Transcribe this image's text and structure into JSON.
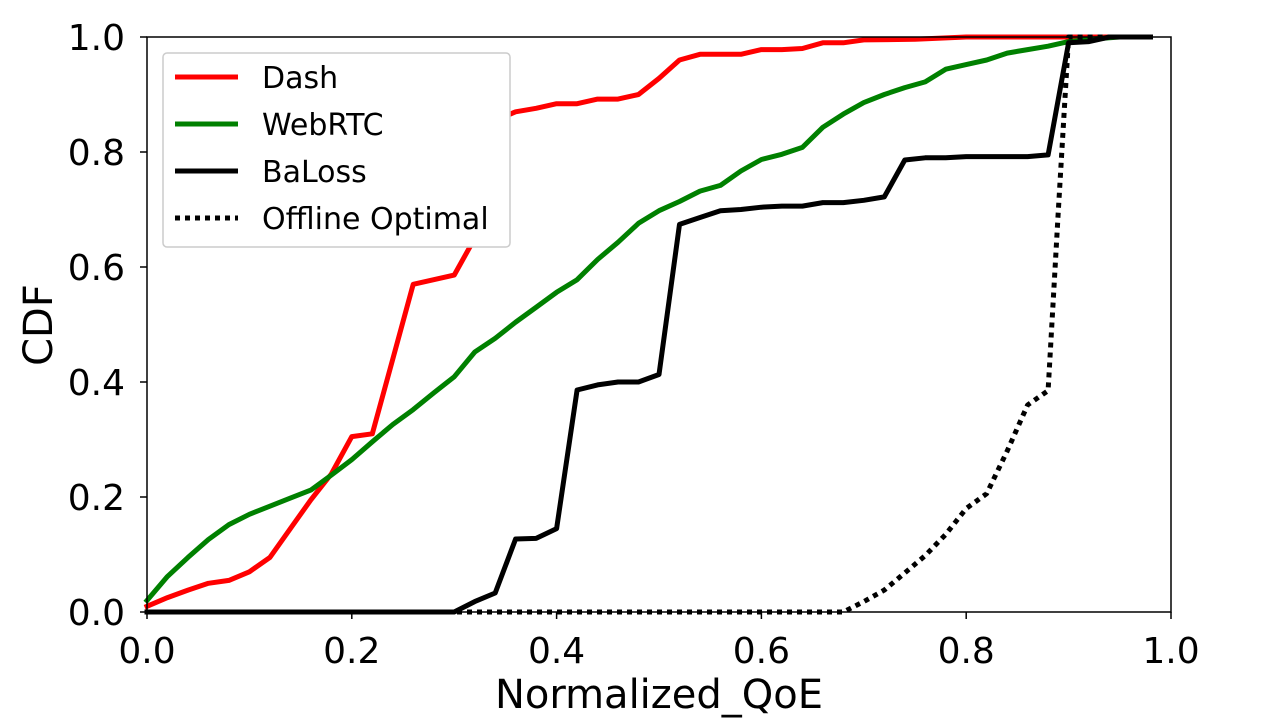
{
  "chart_data": {
    "type": "line",
    "xlabel": "Normalized_QoE",
    "ylabel": "CDF",
    "xlim": [
      0.0,
      1.0
    ],
    "ylim": [
      0.0,
      1.0
    ],
    "xticks": [
      "0.0",
      "0.2",
      "0.4",
      "0.6",
      "0.8",
      "1.0"
    ],
    "yticks": [
      "0.0",
      "0.2",
      "0.4",
      "0.6",
      "0.8",
      "1.0"
    ],
    "grid": false,
    "legend_position": "top-left",
    "series": [
      {
        "name": "Dash",
        "color": "#ff0000",
        "style": "solid",
        "points": [
          [
            0.0,
            0.01
          ],
          [
            0.02,
            0.025
          ],
          [
            0.04,
            0.038
          ],
          [
            0.06,
            0.05
          ],
          [
            0.08,
            0.055
          ],
          [
            0.1,
            0.07
          ],
          [
            0.12,
            0.095
          ],
          [
            0.14,
            0.145
          ],
          [
            0.16,
            0.195
          ],
          [
            0.18,
            0.24
          ],
          [
            0.2,
            0.305
          ],
          [
            0.22,
            0.31
          ],
          [
            0.24,
            0.44
          ],
          [
            0.26,
            0.57
          ],
          [
            0.28,
            0.578
          ],
          [
            0.3,
            0.586
          ],
          [
            0.32,
            0.65
          ],
          [
            0.34,
            0.855
          ],
          [
            0.36,
            0.87
          ],
          [
            0.38,
            0.876
          ],
          [
            0.4,
            0.884
          ],
          [
            0.42,
            0.884
          ],
          [
            0.44,
            0.892
          ],
          [
            0.46,
            0.892
          ],
          [
            0.48,
            0.9
          ],
          [
            0.5,
            0.928
          ],
          [
            0.52,
            0.96
          ],
          [
            0.54,
            0.97
          ],
          [
            0.56,
            0.97
          ],
          [
            0.58,
            0.97
          ],
          [
            0.6,
            0.978
          ],
          [
            0.62,
            0.978
          ],
          [
            0.64,
            0.98
          ],
          [
            0.66,
            0.99
          ],
          [
            0.68,
            0.99
          ],
          [
            0.7,
            0.995
          ],
          [
            0.75,
            0.996
          ],
          [
            0.8,
            1.0
          ],
          [
            0.98,
            1.0
          ]
        ]
      },
      {
        "name": "WebRTC",
        "color": "#008000",
        "style": "solid",
        "points": [
          [
            0.0,
            0.02
          ],
          [
            0.02,
            0.062
          ],
          [
            0.04,
            0.095
          ],
          [
            0.06,
            0.126
          ],
          [
            0.08,
            0.152
          ],
          [
            0.1,
            0.17
          ],
          [
            0.12,
            0.184
          ],
          [
            0.14,
            0.198
          ],
          [
            0.16,
            0.212
          ],
          [
            0.18,
            0.238
          ],
          [
            0.2,
            0.265
          ],
          [
            0.22,
            0.296
          ],
          [
            0.24,
            0.326
          ],
          [
            0.26,
            0.352
          ],
          [
            0.28,
            0.381
          ],
          [
            0.3,
            0.409
          ],
          [
            0.32,
            0.452
          ],
          [
            0.34,
            0.476
          ],
          [
            0.36,
            0.504
          ],
          [
            0.38,
            0.53
          ],
          [
            0.4,
            0.556
          ],
          [
            0.42,
            0.578
          ],
          [
            0.44,
            0.613
          ],
          [
            0.46,
            0.643
          ],
          [
            0.48,
            0.676
          ],
          [
            0.5,
            0.698
          ],
          [
            0.52,
            0.714
          ],
          [
            0.54,
            0.732
          ],
          [
            0.56,
            0.742
          ],
          [
            0.58,
            0.767
          ],
          [
            0.6,
            0.787
          ],
          [
            0.62,
            0.796
          ],
          [
            0.64,
            0.808
          ],
          [
            0.66,
            0.843
          ],
          [
            0.68,
            0.866
          ],
          [
            0.7,
            0.886
          ],
          [
            0.72,
            0.9
          ],
          [
            0.74,
            0.912
          ],
          [
            0.76,
            0.922
          ],
          [
            0.78,
            0.944
          ],
          [
            0.8,
            0.952
          ],
          [
            0.82,
            0.96
          ],
          [
            0.84,
            0.972
          ],
          [
            0.86,
            0.978
          ],
          [
            0.88,
            0.984
          ],
          [
            0.9,
            0.992
          ],
          [
            0.92,
            0.996
          ],
          [
            0.95,
            1.0
          ],
          [
            0.98,
            1.0
          ]
        ]
      },
      {
        "name": "BaLoss",
        "color": "#000000",
        "style": "solid",
        "points": [
          [
            0.0,
            0.0
          ],
          [
            0.3,
            0.0
          ],
          [
            0.32,
            0.018
          ],
          [
            0.34,
            0.033
          ],
          [
            0.36,
            0.127
          ],
          [
            0.38,
            0.128
          ],
          [
            0.4,
            0.145
          ],
          [
            0.42,
            0.386
          ],
          [
            0.44,
            0.395
          ],
          [
            0.46,
            0.4
          ],
          [
            0.48,
            0.4
          ],
          [
            0.5,
            0.413
          ],
          [
            0.52,
            0.674
          ],
          [
            0.54,
            0.686
          ],
          [
            0.56,
            0.698
          ],
          [
            0.58,
            0.7
          ],
          [
            0.6,
            0.704
          ],
          [
            0.62,
            0.706
          ],
          [
            0.64,
            0.706
          ],
          [
            0.66,
            0.712
          ],
          [
            0.68,
            0.712
          ],
          [
            0.7,
            0.716
          ],
          [
            0.72,
            0.722
          ],
          [
            0.74,
            0.786
          ],
          [
            0.76,
            0.79
          ],
          [
            0.78,
            0.79
          ],
          [
            0.8,
            0.792
          ],
          [
            0.84,
            0.792
          ],
          [
            0.86,
            0.792
          ],
          [
            0.88,
            0.795
          ],
          [
            0.9,
            0.99
          ],
          [
            0.92,
            0.992
          ],
          [
            0.94,
            1.0
          ],
          [
            0.98,
            1.0
          ]
        ]
      },
      {
        "name": "Offline Optimal",
        "color": "#000000",
        "style": "dotted",
        "points": [
          [
            0.0,
            0.0
          ],
          [
            0.68,
            0.0
          ],
          [
            0.7,
            0.018
          ],
          [
            0.72,
            0.038
          ],
          [
            0.74,
            0.068
          ],
          [
            0.76,
            0.098
          ],
          [
            0.78,
            0.135
          ],
          [
            0.8,
            0.18
          ],
          [
            0.82,
            0.206
          ],
          [
            0.84,
            0.28
          ],
          [
            0.86,
            0.36
          ],
          [
            0.88,
            0.385
          ],
          [
            0.89,
            0.7
          ],
          [
            0.9,
            1.0
          ],
          [
            0.98,
            1.0
          ]
        ]
      }
    ]
  }
}
